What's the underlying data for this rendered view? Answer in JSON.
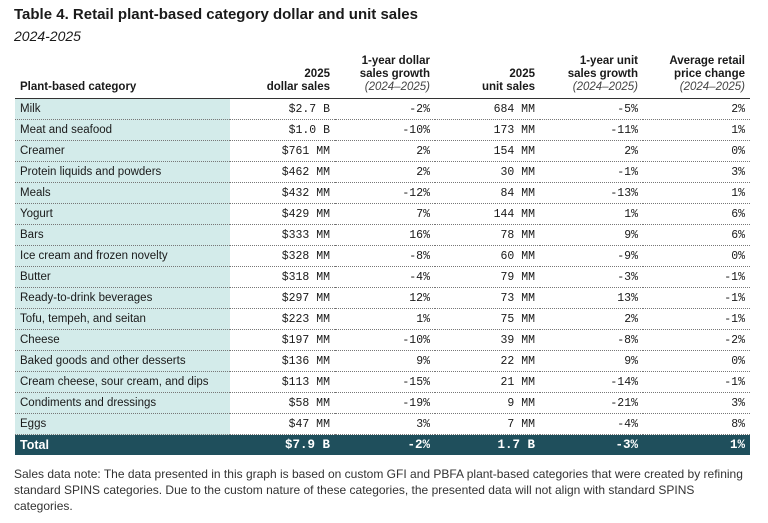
{
  "header": {
    "title": "Table 4. Retail plant-based category dollar and unit sales",
    "subtitle": "2024-2025"
  },
  "table": {
    "columns": [
      {
        "lines": [
          "Plant-based category"
        ]
      },
      {
        "lines": [
          "2025",
          "dollar sales"
        ]
      },
      {
        "lines": [
          "1-year dollar",
          "sales growth"
        ],
        "period": "(2024–2025)"
      },
      {
        "lines": [
          "2025",
          "unit sales"
        ]
      },
      {
        "lines": [
          "1-year unit",
          "sales growth"
        ],
        "period": "(2024–2025)"
      },
      {
        "lines": [
          "Average retail",
          "price change"
        ],
        "period": "(2024–2025)"
      }
    ],
    "rows": [
      [
        "Milk",
        "$2.7 B",
        "-2%",
        "684 MM",
        "-5%",
        "2%"
      ],
      [
        "Meat and seafood",
        "$1.0 B",
        "-10%",
        "173 MM",
        "-11%",
        "1%"
      ],
      [
        "Creamer",
        "$761 MM",
        "2%",
        "154 MM",
        "2%",
        "0%"
      ],
      [
        "Protein liquids and powders",
        "$462 MM",
        "2%",
        "30 MM",
        "-1%",
        "3%"
      ],
      [
        "Meals",
        "$432 MM",
        "-12%",
        "84 MM",
        "-13%",
        "1%"
      ],
      [
        "Yogurt",
        "$429 MM",
        "7%",
        "144 MM",
        "1%",
        "6%"
      ],
      [
        "Bars",
        "$333 MM",
        "16%",
        "78 MM",
        "9%",
        "6%"
      ],
      [
        "Ice cream and frozen novelty",
        "$328 MM",
        "-8%",
        "60 MM",
        "-9%",
        "0%"
      ],
      [
        "Butter",
        "$318 MM",
        "-4%",
        "79 MM",
        "-3%",
        "-1%"
      ],
      [
        "Ready-to-drink beverages",
        "$297 MM",
        "12%",
        "73 MM",
        "13%",
        "-1%"
      ],
      [
        "Tofu, tempeh, and seitan",
        "$223 MM",
        "1%",
        "75 MM",
        "2%",
        "-1%"
      ],
      [
        "Cheese",
        "$197 MM",
        "-10%",
        "39 MM",
        "-8%",
        "-2%"
      ],
      [
        "Baked goods and other desserts",
        "$136 MM",
        "9%",
        "22 MM",
        "9%",
        "0%"
      ],
      [
        "Cream cheese, sour cream, and dips",
        "$113 MM",
        "-15%",
        "21 MM",
        "-14%",
        "-1%"
      ],
      [
        "Condiments and dressings",
        "$58 MM",
        "-19%",
        "9 MM",
        "-21%",
        "3%"
      ],
      [
        "Eggs",
        "$47 MM",
        "3%",
        "7 MM",
        "-4%",
        "8%"
      ]
    ],
    "total": [
      "Total",
      "$7.9 B",
      "-2%",
      "1.7 B",
      "-3%",
      "1%"
    ]
  },
  "note": "Sales data note: The data presented in this graph is based on custom GFI and PBFA plant-based categories that were created by refining standard SPINS categories. Due to the custom nature of these categories, the presented data will not align with standard SPINS categories."
}
